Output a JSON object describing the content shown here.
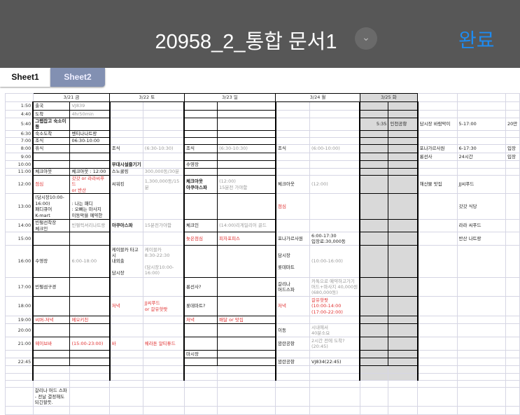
{
  "header": {
    "title": "20958_2_통합 문서1",
    "done_label": "완료",
    "chevron_icon": "chevron-down-icon"
  },
  "tabs": [
    {
      "label": "Sheet1",
      "active": true
    },
    {
      "label": "Sheet2",
      "active": false
    }
  ],
  "sheet": {
    "dates": [
      "3/21 금",
      "3/22 토",
      "3/23 일",
      "3/24 월",
      "3/25 화"
    ],
    "rows": [
      {
        "time": "1:50",
        "cells": {
          "1": [
            "출국"
          ],
          "2": [
            "VJ839",
            "g"
          ]
        }
      },
      {
        "time": "4:40",
        "cells": {
          "1": [
            "도착"
          ],
          "2": [
            "4hr50min",
            "g"
          ]
        }
      },
      {
        "time": "5:40",
        "cells": {
          "1": [
            "그랩잡고 숙소이동",
            "b"
          ],
          "9": [
            "5:35",
            "rt"
          ],
          "10": [
            "인천공항"
          ],
          "11": [
            "담시장 바람막이"
          ],
          "12": [
            "5-17:00"
          ],
          "13": [
            "20만"
          ]
        }
      },
      {
        "time": "6:30",
        "cells": {
          "1": [
            "숙소도착"
          ],
          "2": [
            "벤티나나트랑"
          ]
        }
      },
      {
        "time": "7:00",
        "cells": {
          "1": [
            "조식"
          ],
          "2": [
            "06:30-10:00"
          ]
        }
      },
      {
        "time": "8:00",
        "cells": {
          "1": [
            "휴식"
          ],
          "3": [
            "조식"
          ],
          "4": [
            "(6:30-10:30)",
            "g"
          ],
          "5": [
            "조식"
          ],
          "6": [
            "(6:30-10:30)",
            "g"
          ],
          "7": [
            "조식"
          ],
          "8": [
            "(6:00-10:00)",
            "g"
          ],
          "11": [
            "포나가르사원"
          ],
          "12": [
            "6-17:30"
          ],
          "13": [
            "입장"
          ]
        }
      },
      {
        "time": "9:00",
        "cells": {
          "11": [
            "롱선사"
          ],
          "12": [
            "24시간"
          ],
          "13": [
            "입장"
          ]
        }
      },
      {
        "time": "10:00",
        "cells": {
          "3": [
            "부대시설즐기기",
            "b"
          ],
          "5": [
            "수영장"
          ]
        }
      },
      {
        "time": "11:00",
        "cells": {
          "1": [
            "체크아웃"
          ],
          "2": [
            "체크아웃 : 12:00"
          ],
          "3": [
            "스노쿨링"
          ],
          "4": [
            "300,000동/30분",
            "g"
          ]
        }
      },
      {
        "time": "12:00",
        "cells": {
          "1": [
            "점심",
            "r"
          ],
          "2": [
            "갓갓 or 라라씨푸드\nor 반산",
            "r"
          ],
          "3": [
            "씨워킹"
          ],
          "4": [
            "1,300,000동/15분",
            "g"
          ],
          "5": [
            "체크아웃\n아쿠아스파",
            "b"
          ],
          "6": [
            "(12:00)\n15분전 가야함",
            "g"
          ],
          "7": [
            "체크아웃"
          ],
          "8": [
            "(12:00)",
            "g"
          ],
          "11": [
            "해산물 맛집"
          ],
          "12": [
            "JJ씨푸드"
          ]
        }
      },
      {
        "time": "13:00",
        "cells": {
          "1": [
            "(담시장10:00-\n16:00)\n패디큐어\nK-mart"
          ],
          "2": [
            "\n: 나는 패디\n: 오빠는 마사지\n이동막을 예약한"
          ],
          "7": [
            "점심",
            "r"
          ],
          "12": [
            "갓갓 식당"
          ]
        }
      },
      {
        "time": "14:00",
        "cells": {
          "1": [
            "빈펄선착장\n체크인"
          ],
          "2": [
            "빈펄럭셔리나트랑",
            "g"
          ],
          "3": [
            "아쿠아스파",
            "b"
          ],
          "4": [
            "15분전가야함",
            "g"
          ],
          "5": [
            "체크인"
          ],
          "6": [
            "(14:00)리게일리어 골드",
            "g"
          ],
          "12": [
            "라라 씨푸드"
          ]
        }
      },
      {
        "time": "15:00",
        "cells": {
          "5": [
            "늦은점심",
            "r"
          ],
          "6": [
            "피자포피스",
            "r"
          ],
          "7": [
            "포나가르사원"
          ],
          "8": [
            "6:00-17:30\n입장료:30,000동"
          ],
          "12": [
            "반산 나트랑"
          ]
        }
      },
      {
        "time": "16:00",
        "cells": {
          "1": [
            "수영장"
          ],
          "2": [
            "6:00-18:00",
            "g"
          ],
          "3": [
            "케이블카 타고시\n내외출\n\n담시장"
          ],
          "4": [
            "케이블카\n8:30-22:30\n\n(담시장10:00-\n16:00)",
            "g"
          ],
          "7": [
            "담시장\n\n롯데마트"
          ],
          "8": [
            "(10:00-16:00)",
            "g"
          ]
        }
      },
      {
        "time": "17:00",
        "cells": {
          "1": [
            "빈펄섬구경"
          ],
          "5": [
            "롱선사?"
          ],
          "7": [
            "갈리나\n머드스파"
          ],
          "8": [
            "카톡으로 예약하고가기\n머드+마사지 40,000원\n(680,000동)",
            "g"
          ]
        }
      },
      {
        "time": "18:00",
        "cells": {
          "3": [
            "저녁",
            "r"
          ],
          "4": [
            "JJ씨푸드\nor 갈유핫팟",
            "r"
          ],
          "5": [
            "롯데마트?"
          ],
          "7": [
            "저녁",
            "r"
          ],
          "8": [
            "갈유핫팟\n(10:00-14:00\n(17:00-22:00)",
            "r"
          ]
        }
      },
      {
        "time": "19:00",
        "cells": {
          "1": [
            "씨버-저녁",
            "r"
          ],
          "2": [
            "메오키친",
            "r"
          ],
          "5": [
            "저녁",
            "r"
          ],
          "6": [
            "배달 or 맛집",
            "r"
          ]
        }
      },
      {
        "time": "20:00",
        "cells": {
          "7": [
            "이동"
          ],
          "8": [
            "시내에서\n40분소요",
            "g"
          ]
        }
      },
      {
        "time": "21:00",
        "cells": {
          "1": [
            "웨이브바",
            "r"
          ],
          "2": [
            "(15:00-23:00)",
            "r"
          ],
          "3": [
            "바",
            "r"
          ],
          "4": [
            "쉐라톤 알티튜드",
            "r"
          ],
          "7": [
            "깜란공항"
          ],
          "8": [
            "2시간 전에 도착?\n(20:45)",
            "g"
          ]
        }
      },
      {
        "time": "",
        "cells": {
          "5": [
            "마시장"
          ]
        }
      },
      {
        "time": "22:45",
        "cells": {
          "7": [
            "깜란공항"
          ],
          "8": [
            "VJ834(22:45)"
          ]
        }
      },
      {
        "time": "",
        "cells": {}
      },
      {
        "time": "",
        "cells": {}
      },
      {
        "time": "",
        "cells": {}
      },
      {
        "time": "",
        "cells": {
          "1": [
            "갈리나 머드 스파 - 전날 결정해도 되긴할듯."
          ]
        }
      },
      {
        "time": "",
        "cells": {}
      }
    ]
  }
}
